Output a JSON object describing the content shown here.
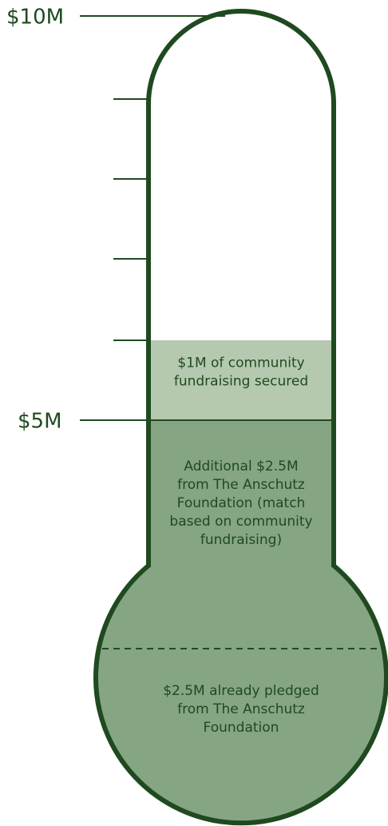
{
  "scale_labels": {
    "top": "$10M",
    "middle": "$5M"
  },
  "segments": [
    {
      "lines": [
        "$1M of community",
        "fundraising secured"
      ]
    },
    {
      "lines": [
        "Additional $2.5M",
        "from The Anschutz",
        "Foundation (match",
        "based on community",
        "fundraising)"
      ]
    },
    {
      "lines": [
        "$2.5M already pledged",
        "from The Anschutz",
        "Foundation"
      ]
    }
  ]
}
